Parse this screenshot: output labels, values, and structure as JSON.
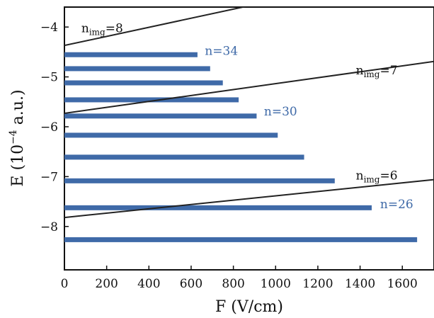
{
  "chart_data": {
    "type": "bar",
    "orientation": "horizontal",
    "xlabel": "F (V/cm)",
    "ylabel_main": "E (10",
    "ylabel_sup": "−4",
    "ylabel_tail": " a.u.)",
    "xlim": [
      0,
      1750
    ],
    "ylim": [
      -8.87,
      -3.6
    ],
    "xticks": [
      0,
      200,
      400,
      600,
      800,
      1000,
      1200,
      1400,
      1600
    ],
    "xtick_labels": [
      "0",
      "200",
      "400",
      "600",
      "800",
      "1000",
      "1200",
      "1400",
      "1600"
    ],
    "yticks": [
      -4,
      -5,
      -6,
      -7,
      -8
    ],
    "ytick_labels": [
      "−4",
      "−5",
      "−6",
      "−7",
      "−8"
    ],
    "bar_color": "#3f6aa8",
    "line_color": "#222222",
    "bars": [
      {
        "energy": -4.555,
        "field_max": 630
      },
      {
        "energy": -4.835,
        "field_max": 690
      },
      {
        "energy": -5.12,
        "field_max": 750
      },
      {
        "energy": -5.46,
        "field_max": 825
      },
      {
        "energy": -5.785,
        "field_max": 910
      },
      {
        "energy": -6.17,
        "field_max": 1010
      },
      {
        "energy": -6.61,
        "field_max": 1135
      },
      {
        "energy": -7.085,
        "field_max": 1280
      },
      {
        "energy": -7.625,
        "field_max": 1455
      },
      {
        "energy": -8.265,
        "field_max": 1670
      }
    ],
    "lines": [
      {
        "name": "n_img=8",
        "x": [
          0,
          900
        ],
        "y": [
          -4.37,
          -3.55
        ]
      },
      {
        "name": "n_img=7",
        "x": [
          0,
          1750
        ],
        "y": [
          -5.73,
          -4.69
        ]
      },
      {
        "name": "n_img=6",
        "x": [
          0,
          1750
        ],
        "y": [
          -7.82,
          -7.06
        ]
      }
    ],
    "annotations": [
      {
        "id": "nimg8",
        "base": "n",
        "sub": "img",
        "tail": "=8",
        "x": 80,
        "y": -4.03,
        "color": "#111111",
        "anchor": "start"
      },
      {
        "id": "nimg7",
        "base": "n",
        "sub": "img",
        "tail": "=7",
        "x": 1380,
        "y": -4.88,
        "color": "#111111",
        "anchor": "start"
      },
      {
        "id": "nimg6",
        "base": "n",
        "sub": "img",
        "tail": "=6",
        "x": 1380,
        "y": -6.99,
        "color": "#111111",
        "anchor": "start"
      },
      {
        "id": "n34",
        "base": "n=34",
        "sub": "",
        "tail": "",
        "x": 665,
        "y": -4.49,
        "color": "#3f6aa8",
        "anchor": "start"
      },
      {
        "id": "n30",
        "base": "n=30",
        "sub": "",
        "tail": "",
        "x": 945,
        "y": -5.7,
        "color": "#3f6aa8",
        "anchor": "start"
      },
      {
        "id": "n26",
        "base": "n=26",
        "sub": "",
        "tail": "",
        "x": 1495,
        "y": -7.56,
        "color": "#3f6aa8",
        "anchor": "start"
      }
    ]
  }
}
